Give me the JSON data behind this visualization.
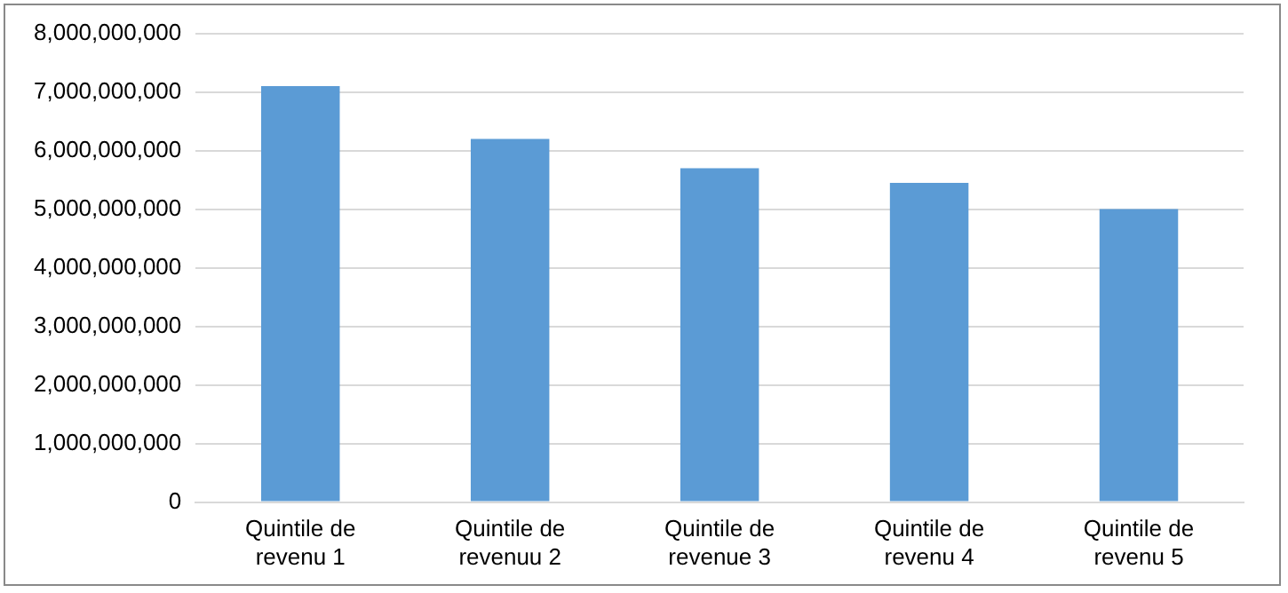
{
  "chart_data": {
    "type": "bar",
    "categories": [
      "Quintile de revenu 1",
      "Quintile de revenuu 2",
      "Quintile de revenue 3",
      "Quintile de revenu 4",
      "Quintile de revenu 5"
    ],
    "values": [
      7100000000,
      6200000000,
      5700000000,
      5450000000,
      5000000000
    ],
    "color": "#5b9bd5",
    "ylim": [
      0,
      8000000000
    ],
    "yticks": [
      0,
      {
        "value": 1000000000,
        "label": "1,000,000,000"
      },
      {
        "value": 2000000000,
        "label": "2,000,000,000"
      },
      {
        "value": 3000000000,
        "label": "3,000,000,000"
      },
      {
        "value": 4000000000,
        "label": "4,000,000,000"
      },
      {
        "value": 5000000000,
        "label": "5,000,000,000"
      },
      {
        "value": 6000000000,
        "label": "6,000,000,000"
      },
      {
        "value": 7000000000,
        "label": "7,000,000,000"
      },
      {
        "value": 8000000000,
        "label": "8,000,000,000"
      }
    ],
    "grid": "y",
    "legend": false
  }
}
